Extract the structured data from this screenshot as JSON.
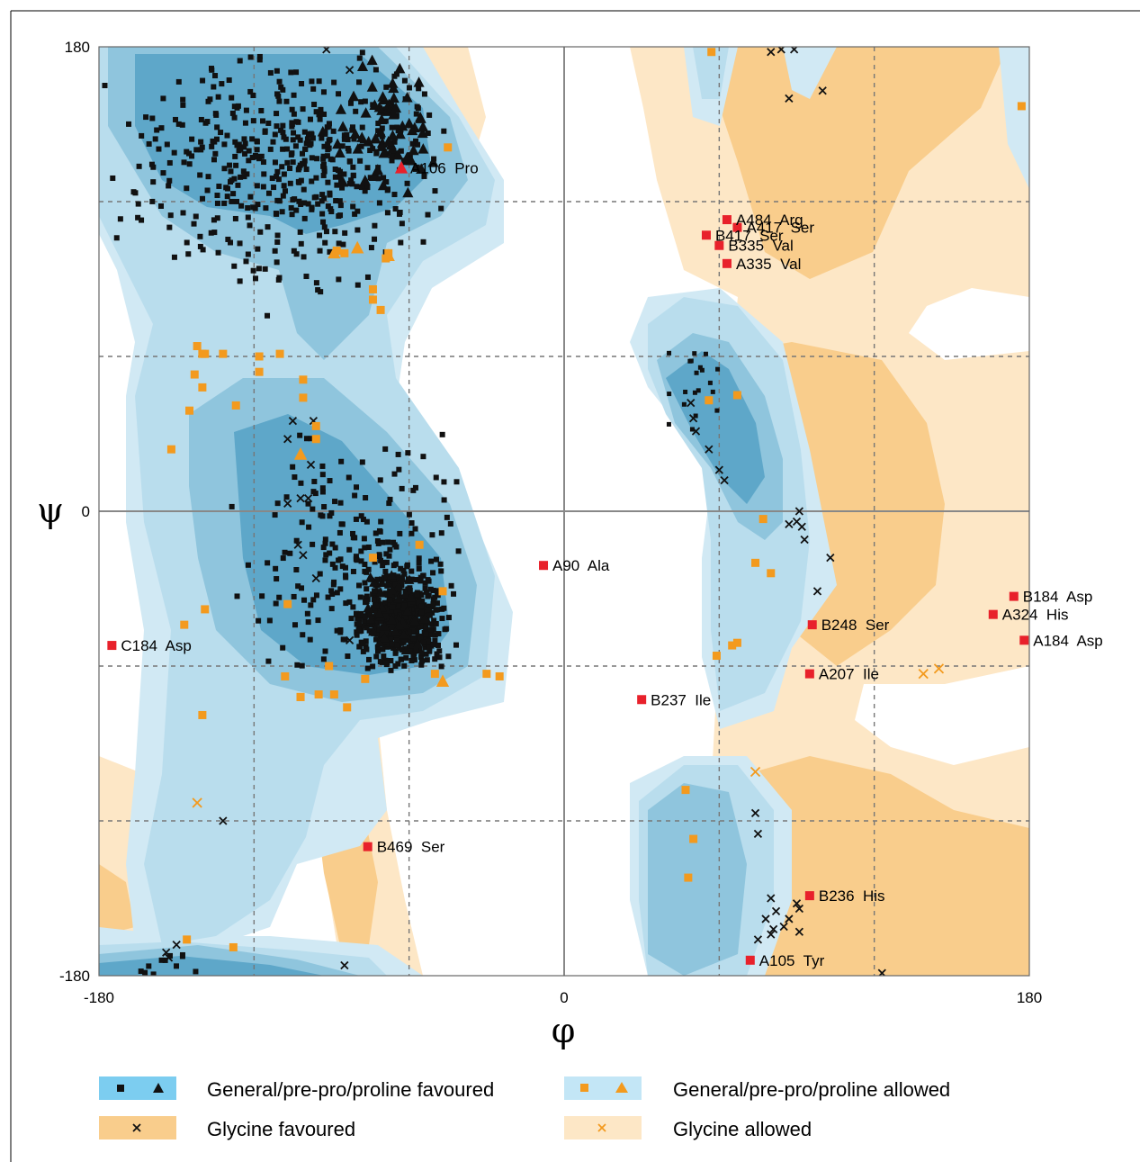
{
  "chart_data": {
    "type": "scatter",
    "xlabel": "φ",
    "ylabel": "ψ",
    "xlim": [
      -180,
      180
    ],
    "ylim": [
      -180,
      180
    ],
    "grid": "dashed every 60",
    "x_tick_labels": [
      "-180",
      "0",
      "180"
    ],
    "y_tick_labels": [
      "180",
      "0",
      "-180"
    ],
    "colors": {
      "favoured_core": "#5ea7c9",
      "favoured": "#8fc5dd",
      "allowed": "#b9dded",
      "allowed_outer": "#d1e9f4",
      "gly_favoured": "#f9cd8c",
      "gly_allowed": "#fde7c6",
      "point_favoured": "#111111",
      "point_allowed": "#f39a1e",
      "outlier": "#e8212b"
    },
    "outliers": [
      {
        "label": "A106  Pro",
        "phi": -63,
        "psi": 133,
        "shape": "triangle"
      },
      {
        "label": "A484  Arg",
        "phi": 63,
        "psi": 113,
        "shape": "square"
      },
      {
        "label": "A417  Ser",
        "phi": 67,
        "psi": 110,
        "shape": "square"
      },
      {
        "label": "B417  Ser",
        "phi": 55,
        "psi": 107,
        "shape": "square"
      },
      {
        "label": "B335  Val",
        "phi": 60,
        "psi": 103,
        "shape": "square"
      },
      {
        "label": "A335  Val",
        "phi": 63,
        "psi": 96,
        "shape": "square"
      },
      {
        "label": "A90  Ala",
        "phi": -8,
        "psi": -21,
        "shape": "square"
      },
      {
        "label": "B184  Asp",
        "phi": 174,
        "psi": -33,
        "shape": "square"
      },
      {
        "label": "A324  His",
        "phi": 166,
        "psi": -40,
        "shape": "square"
      },
      {
        "label": "A184  Asp",
        "phi": 178,
        "psi": -50,
        "shape": "square"
      },
      {
        "label": "B248  Ser",
        "phi": 96,
        "psi": -44,
        "shape": "square"
      },
      {
        "label": "C184  Asp",
        "phi": -175,
        "psi": -52,
        "shape": "square"
      },
      {
        "label": "A207  Ile",
        "phi": 95,
        "psi": -63,
        "shape": "square"
      },
      {
        "label": "B237  Ile",
        "phi": 30,
        "psi": -73,
        "shape": "square"
      },
      {
        "label": "B469  Ser",
        "phi": -76,
        "psi": -130,
        "shape": "square"
      },
      {
        "label": "B236  His",
        "phi": 95,
        "psi": -149,
        "shape": "square"
      },
      {
        "label": "A105  Tyr",
        "phi": 72,
        "psi": -174,
        "shape": "square"
      }
    ],
    "glycine_favoured_points": [
      [
        -92,
        179
      ],
      [
        -83,
        171
      ],
      [
        80,
        178
      ],
      [
        84,
        179
      ],
      [
        89,
        179
      ],
      [
        87,
        160
      ],
      [
        100,
        163
      ],
      [
        -105,
        35
      ],
      [
        -97,
        35
      ],
      [
        -107,
        28
      ],
      [
        -98,
        18
      ],
      [
        -99,
        5
      ],
      [
        -102,
        5
      ],
      [
        -107,
        3
      ],
      [
        -103,
        -13
      ],
      [
        -101,
        -17
      ],
      [
        -96,
        -26
      ],
      [
        -83,
        -50
      ],
      [
        49,
        42
      ],
      [
        50,
        36
      ],
      [
        51,
        31
      ],
      [
        56,
        24
      ],
      [
        60,
        16
      ],
      [
        62,
        12
      ],
      [
        91,
        0
      ],
      [
        90,
        -4
      ],
      [
        87,
        -5
      ],
      [
        92,
        -6
      ],
      [
        93,
        -11
      ],
      [
        103,
        -18
      ],
      [
        98,
        -31
      ],
      [
        -132,
        -120
      ],
      [
        74,
        -117
      ],
      [
        75,
        -125
      ],
      [
        80,
        -150
      ],
      [
        87,
        -158
      ],
      [
        90,
        -152
      ],
      [
        91,
        -154
      ],
      [
        78,
        -158
      ],
      [
        85,
        -161
      ],
      [
        82,
        -155
      ],
      [
        80,
        -164
      ],
      [
        91,
        -163
      ],
      [
        75,
        -166
      ],
      [
        81,
        -162
      ],
      [
        -85,
        -176
      ],
      [
        -150,
        -168
      ],
      [
        -153,
        -173
      ],
      [
        -154,
        -171
      ],
      [
        123,
        -179
      ]
    ],
    "glycine_allowed_points": [
      [
        -142,
        -113
      ],
      [
        74,
        -101
      ],
      [
        139,
        -63
      ],
      [
        145,
        -61
      ]
    ],
    "general_allowed_points": [
      [
        57,
        178
      ],
      [
        177,
        157
      ],
      [
        -45,
        141
      ],
      [
        -88,
        101
      ],
      [
        -85,
        100
      ],
      [
        -68,
        100
      ],
      [
        -69,
        98
      ],
      [
        -74,
        86
      ],
      [
        -74,
        82
      ],
      [
        -71,
        78
      ],
      [
        -142,
        64
      ],
      [
        -140,
        61
      ],
      [
        -139,
        61
      ],
      [
        -132,
        61
      ],
      [
        -110,
        61
      ],
      [
        -118,
        60
      ],
      [
        -143,
        53
      ],
      [
        -140,
        48
      ],
      [
        -118,
        54
      ],
      [
        -101,
        51
      ],
      [
        -101,
        44
      ],
      [
        -145,
        39
      ],
      [
        -96,
        33
      ],
      [
        -96,
        28
      ],
      [
        56,
        43
      ],
      [
        67,
        45
      ],
      [
        -152,
        24
      ],
      [
        -127,
        41
      ],
      [
        77,
        -3
      ],
      [
        -56,
        -13
      ],
      [
        -74,
        -18
      ],
      [
        74,
        -20
      ],
      [
        80,
        -24
      ],
      [
        -47,
        -31
      ],
      [
        -147,
        -44
      ],
      [
        -139,
        -38
      ],
      [
        -107,
        -36
      ],
      [
        -91,
        -60
      ],
      [
        -77,
        -65
      ],
      [
        -108,
        -64
      ],
      [
        -95,
        -71
      ],
      [
        -89,
        -71
      ],
      [
        -102,
        -72
      ],
      [
        -84,
        -76
      ],
      [
        -50,
        -63
      ],
      [
        -30,
        -63
      ],
      [
        -25,
        -64
      ],
      [
        65,
        -52
      ],
      [
        67,
        -51
      ],
      [
        59,
        -56
      ],
      [
        -140,
        -79
      ],
      [
        -102,
        -72
      ],
      [
        47,
        -108
      ],
      [
        50,
        -127
      ],
      [
        48,
        -142
      ],
      [
        -146,
        -166
      ],
      [
        -128,
        -169
      ]
    ],
    "general_allowed_triangles": [
      [
        -89,
        100
      ],
      [
        -80,
        102
      ],
      [
        -68,
        99
      ],
      [
        -47,
        -66
      ],
      [
        -102,
        22
      ]
    ]
  },
  "legend": {
    "items": [
      {
        "label": "General/pre-pro/proline favoured",
        "swatch": "favoured",
        "markers": [
          "square",
          "triangle"
        ]
      },
      {
        "label": "General/pre-pro/proline allowed",
        "swatch": "allowed",
        "markers": [
          "square",
          "triangle"
        ]
      },
      {
        "label": "Glycine favoured",
        "swatch": "gly_favoured",
        "markers": [
          "cross"
        ]
      },
      {
        "label": "Glycine allowed",
        "swatch": "gly_allowed",
        "markers": [
          "cross"
        ]
      }
    ]
  }
}
